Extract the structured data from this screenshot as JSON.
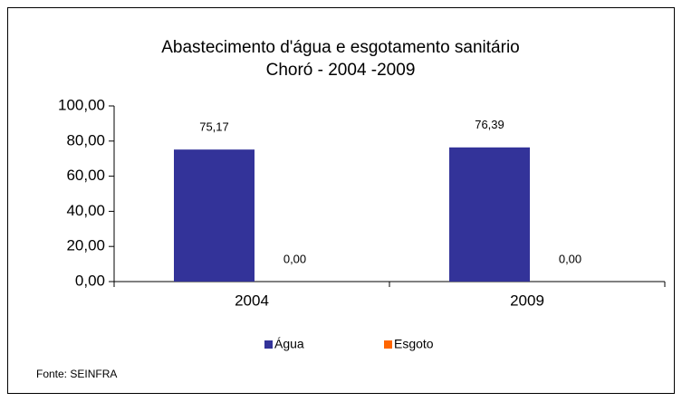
{
  "chart_data": {
    "type": "bar",
    "title": "Abastecimento d'água e esgotamento sanitário",
    "subtitle": "Choró - 2004 -2009",
    "categories": [
      "2004",
      "2009"
    ],
    "series": [
      {
        "name": "Água",
        "color": "#333399",
        "values": [
          75.17,
          76.39
        ],
        "value_labels": [
          "75,17",
          "76,39"
        ]
      },
      {
        "name": "Esgoto",
        "color": "#ff6600",
        "values": [
          0,
          0
        ],
        "value_labels": [
          "0,00",
          "0,00"
        ]
      }
    ],
    "ylim": [
      0,
      100
    ],
    "yticks": [
      {
        "value": 0,
        "label": "0,00"
      },
      {
        "value": 20,
        "label": "20,00"
      },
      {
        "value": 40,
        "label": "40,00"
      },
      {
        "value": 60,
        "label": "60,00"
      },
      {
        "value": 80,
        "label": "80,00"
      },
      {
        "value": 100,
        "label": "100,00"
      }
    ],
    "legend": "bottom",
    "source": "Fonte: SEINFRA"
  }
}
